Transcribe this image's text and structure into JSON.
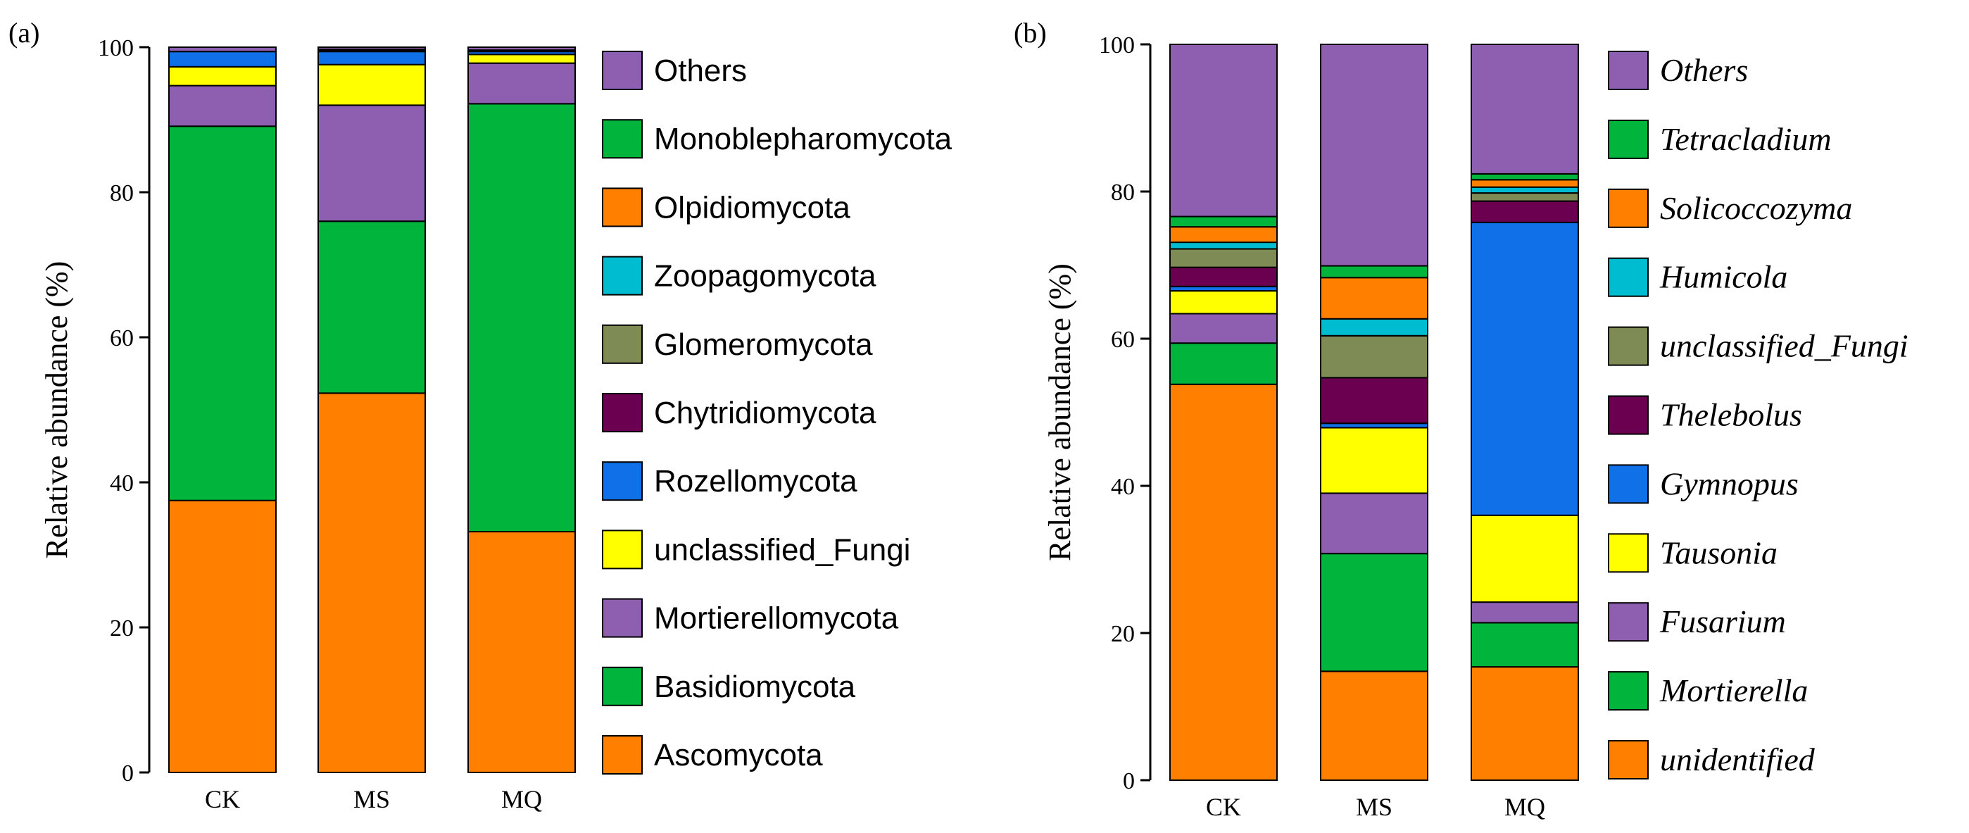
{
  "chart_data": [
    {
      "panel": "(a)",
      "type": "bar",
      "stacked": true,
      "categories": [
        "CK",
        "MS",
        "MQ"
      ],
      "ylabel": "Relative abundance (%)",
      "xlabel": "",
      "ylim": [
        0,
        100
      ],
      "yticks": [
        0,
        20,
        40,
        60,
        80,
        100
      ],
      "legend_italic": false,
      "series": [
        {
          "name": "Ascomycota",
          "color": "#FF8000",
          "values": [
            37.5,
            52.3,
            33.2
          ]
        },
        {
          "name": "Basidiomycota",
          "color": "#00B43C",
          "values": [
            51.6,
            23.7,
            59.0
          ]
        },
        {
          "name": "Mortierellomycota",
          "color": "#8E5FB0",
          "values": [
            5.6,
            16.0,
            5.6
          ]
        },
        {
          "name": "unclassified_Fungi",
          "color": "#FFFF00",
          "values": [
            2.6,
            5.6,
            1.2
          ]
        },
        {
          "name": "Rozellomycota",
          "color": "#1070E8",
          "values": [
            2.1,
            1.8,
            0.4
          ]
        },
        {
          "name": "Chytridiomycota",
          "color": "#6B0050",
          "values": [
            0.0,
            0.2,
            0.0
          ]
        },
        {
          "name": "Glomeromycota",
          "color": "#7E8B54",
          "values": [
            0.0,
            0.1,
            0.0
          ]
        },
        {
          "name": "Zoopagomycota",
          "color": "#00BCD0",
          "values": [
            0.0,
            0.0,
            0.2
          ]
        },
        {
          "name": "Olpidiomycota",
          "color": "#FF8000",
          "values": [
            0.0,
            0.0,
            0.0
          ]
        },
        {
          "name": "Monoblepharomycota",
          "color": "#00B43C",
          "values": [
            0.0,
            0.0,
            0.0
          ]
        },
        {
          "name": "Others",
          "color": "#8E5FB0",
          "values": [
            0.6,
            0.3,
            0.4
          ]
        }
      ]
    },
    {
      "panel": "(b)",
      "type": "bar",
      "stacked": true,
      "categories": [
        "CK",
        "MS",
        "MQ"
      ],
      "ylabel": "Relative abundance (%)",
      "xlabel": "",
      "ylim": [
        0,
        100
      ],
      "yticks": [
        0,
        20,
        40,
        60,
        80,
        100
      ],
      "legend_italic": true,
      "series": [
        {
          "name": "unidentified",
          "color": "#FF8000",
          "values": [
            53.8,
            14.8,
            15.4
          ]
        },
        {
          "name": "Mortierella",
          "color": "#00B43C",
          "values": [
            5.6,
            16.0,
            6.0
          ]
        },
        {
          "name": "Fusarium",
          "color": "#8E5FB0",
          "values": [
            4.0,
            8.2,
            2.8
          ]
        },
        {
          "name": "Tausonia",
          "color": "#FFFF00",
          "values": [
            3.1,
            8.9,
            11.8
          ]
        },
        {
          "name": "Gymnopus",
          "color": "#1070E8",
          "values": [
            0.6,
            0.6,
            39.8
          ]
        },
        {
          "name": "Thelebolus",
          "color": "#6B0050",
          "values": [
            2.6,
            6.2,
            2.9
          ]
        },
        {
          "name": "unclassified_Fungi",
          "color": "#7E8B54",
          "values": [
            2.5,
            5.7,
            1.1
          ]
        },
        {
          "name": "Humicola",
          "color": "#00BCD0",
          "values": [
            0.9,
            2.3,
            0.8
          ]
        },
        {
          "name": "Solicoccozyma",
          "color": "#FF8000",
          "values": [
            2.1,
            5.6,
            1.0
          ]
        },
        {
          "name": "Tetracladium",
          "color": "#00B43C",
          "values": [
            1.4,
            1.6,
            0.8
          ]
        },
        {
          "name": "Others",
          "color": "#8E5FB0",
          "values": [
            23.4,
            30.1,
            17.6
          ]
        }
      ]
    }
  ]
}
